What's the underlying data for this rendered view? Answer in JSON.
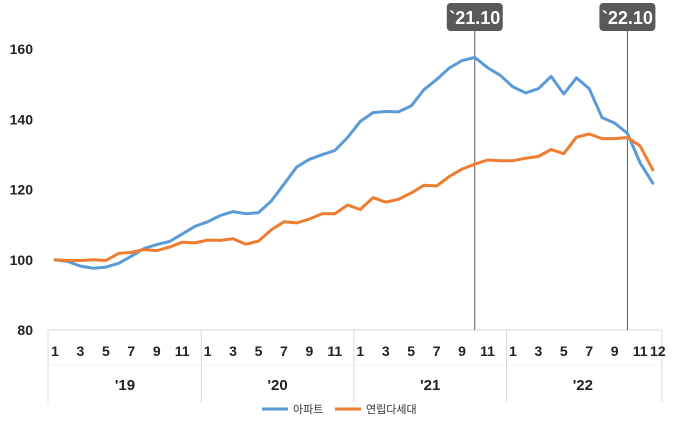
{
  "chart_data": {
    "type": "line",
    "title": "",
    "xlabel": "",
    "ylabel": "",
    "ylim": [
      80,
      160
    ],
    "yticks": [
      80,
      100,
      120,
      140,
      160
    ],
    "grid": false,
    "legend_position": "bottom-center",
    "x": [
      "2019-01",
      "2019-02",
      "2019-03",
      "2019-04",
      "2019-05",
      "2019-06",
      "2019-07",
      "2019-08",
      "2019-09",
      "2019-10",
      "2019-11",
      "2019-12",
      "2020-01",
      "2020-02",
      "2020-03",
      "2020-04",
      "2020-05",
      "2020-06",
      "2020-07",
      "2020-08",
      "2020-09",
      "2020-10",
      "2020-11",
      "2020-12",
      "2021-01",
      "2021-02",
      "2021-03",
      "2021-04",
      "2021-05",
      "2021-06",
      "2021-07",
      "2021-08",
      "2021-09",
      "2021-10",
      "2021-11",
      "2021-12",
      "2022-01",
      "2022-02",
      "2022-03",
      "2022-04",
      "2022-05",
      "2022-06",
      "2022-07",
      "2022-08",
      "2022-09",
      "2022-10",
      "2022-11",
      "2022-12"
    ],
    "month_tick_labels": [
      "1",
      "3",
      "5",
      "7",
      "9",
      "11",
      "1",
      "3",
      "5",
      "7",
      "9",
      "11",
      "1",
      "3",
      "5",
      "7",
      "9",
      "11",
      "1",
      "3",
      "5",
      "7",
      "9",
      "11",
      "12"
    ],
    "year_labels": [
      "'19",
      "'20",
      "'21",
      "'22"
    ],
    "series": [
      {
        "name": "아파트",
        "color": "#5b9bd5",
        "values": [
          100.0,
          99.5,
          98.2,
          97.6,
          97.9,
          99.0,
          101.0,
          103.2,
          104.3,
          105.2,
          107.3,
          109.5,
          110.8,
          112.6,
          113.7,
          113.1,
          113.4,
          116.7,
          121.5,
          126.4,
          128.6,
          129.9,
          131.1,
          134.8,
          139.4,
          141.9,
          142.2,
          142.1,
          143.8,
          148.4,
          151.3,
          154.6,
          156.7,
          157.6,
          154.7,
          152.5,
          149.2,
          147.5,
          148.7,
          152.2,
          147.2,
          151.8,
          148.7,
          140.5,
          138.9,
          136.0,
          127.6,
          121.8
        ]
      },
      {
        "name": "연립다세대",
        "color": "#ed7d31",
        "values": [
          100.0,
          99.8,
          99.8,
          100.0,
          99.8,
          101.8,
          102.1,
          102.9,
          102.6,
          103.6,
          105.0,
          104.8,
          105.6,
          105.5,
          106.0,
          104.4,
          105.3,
          108.5,
          110.8,
          110.5,
          111.6,
          113.1,
          113.1,
          115.6,
          114.3,
          117.7,
          116.4,
          117.2,
          119.0,
          121.2,
          121.0,
          123.7,
          125.8,
          127.2,
          128.4,
          128.2,
          128.2,
          128.9,
          129.4,
          131.4,
          130.2,
          134.9,
          135.8,
          134.5,
          134.5,
          134.8,
          132.4,
          125.6
        ]
      }
    ],
    "annotations": [
      {
        "x": "2021-10",
        "label": "`21.10"
      },
      {
        "x": "2022-10",
        "label": "`22.10"
      }
    ]
  },
  "colors": {
    "axis": "#d9d9d9",
    "callout_fill": "#595959",
    "marker_line": "#595959"
  }
}
